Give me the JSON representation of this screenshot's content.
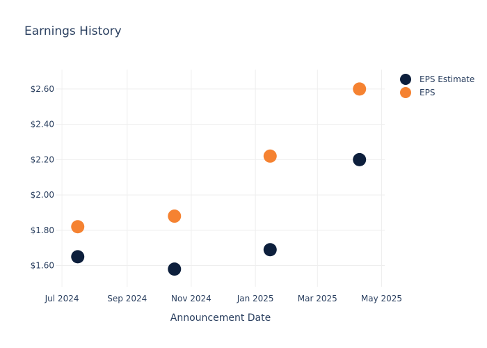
{
  "chart_data": {
    "type": "scatter",
    "title": "Earnings History",
    "xlabel": "Announcement Date",
    "ylabel": "",
    "x_ticks": [
      {
        "date": "2024-07-01",
        "label": "Jul 2024"
      },
      {
        "date": "2024-09-01",
        "label": "Sep 2024"
      },
      {
        "date": "2024-11-01",
        "label": "Nov 2024"
      },
      {
        "date": "2025-01-01",
        "label": "Jan 2025"
      },
      {
        "date": "2025-03-01",
        "label": "Mar 2025"
      },
      {
        "date": "2025-05-01",
        "label": "May 2025"
      }
    ],
    "xlim": [
      "2024-06-25",
      "2025-05-04"
    ],
    "y_ticks": [
      {
        "value": 1.6,
        "label": "$1.60"
      },
      {
        "value": 1.8,
        "label": "$1.80"
      },
      {
        "value": 2.0,
        "label": "$2.00"
      },
      {
        "value": 2.2,
        "label": "$2.20"
      },
      {
        "value": 2.4,
        "label": "$2.40"
      },
      {
        "value": 2.6,
        "label": "$2.60"
      }
    ],
    "ylim": [
      1.48,
      2.71
    ],
    "grid": true,
    "legend_position": "top-right",
    "series": [
      {
        "name": "EPS Estimate",
        "color": "#0d1f3c",
        "points": [
          {
            "x": "2024-07-16",
            "y": 1.65
          },
          {
            "x": "2024-10-16",
            "y": 1.58
          },
          {
            "x": "2025-01-15",
            "y": 1.69
          },
          {
            "x": "2025-04-10",
            "y": 2.2
          }
        ]
      },
      {
        "name": "EPS",
        "color": "#f58231",
        "points": [
          {
            "x": "2024-07-16",
            "y": 1.82
          },
          {
            "x": "2024-10-16",
            "y": 1.88
          },
          {
            "x": "2025-01-15",
            "y": 2.22
          },
          {
            "x": "2025-04-10",
            "y": 2.6
          }
        ]
      }
    ]
  }
}
